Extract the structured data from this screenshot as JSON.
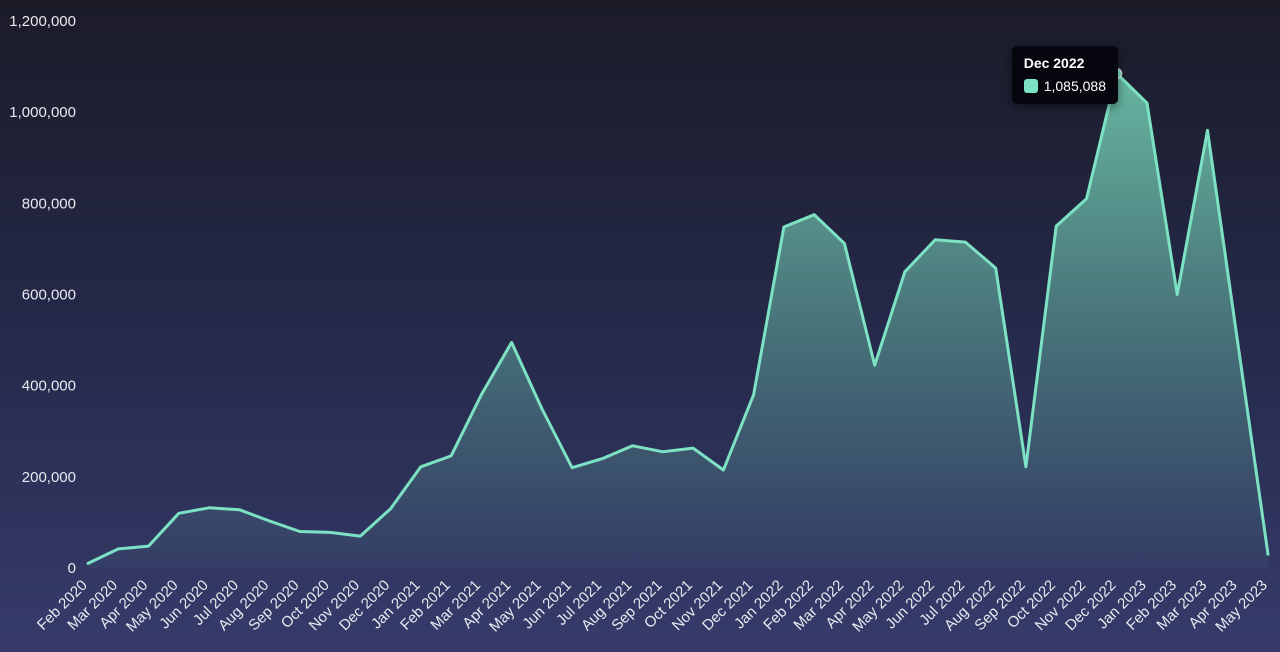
{
  "colors": {
    "line": "#7de2c3",
    "background_top": "#1b1b28",
    "background_mid": "#262b4d",
    "background_bottom": "#363b6b",
    "axis_text": "#e8eaf0",
    "tooltip_background": "#05060e"
  },
  "tooltip": {
    "title": "Dec 2022",
    "value": "1,085,088",
    "point_index": 34,
    "swatch_color": "#7de2c3"
  },
  "chart_data": {
    "type": "area",
    "title": "",
    "xlabel": "",
    "ylabel": "",
    "grid": false,
    "legend": "none",
    "ylim": [
      0,
      1200000
    ],
    "y_ticks": [
      "0",
      "200,000",
      "400,000",
      "600,000",
      "800,000",
      "1,000,000",
      "1,200,000"
    ],
    "y_tick_values": [
      0,
      200000,
      400000,
      600000,
      800000,
      1000000,
      1200000
    ],
    "categories": [
      "Feb 2020",
      "Mar 2020",
      "Apr 2020",
      "May 2020",
      "Jun 2020",
      "Jul 2020",
      "Aug 2020",
      "Sep 2020",
      "Oct 2020",
      "Nov 2020",
      "Dec 2020",
      "Jan 2021",
      "Feb 2021",
      "Mar 2021",
      "Apr 2021",
      "May 2021",
      "Jun 2021",
      "Jul 2021",
      "Aug 2021",
      "Sep 2021",
      "Oct 2021",
      "Nov 2021",
      "Dec 2021",
      "Jan 2022",
      "Feb 2022",
      "Mar 2022",
      "Apr 2022",
      "May 2022",
      "Jun 2022",
      "Jul 2022",
      "Aug 2022",
      "Sep 2022",
      "Oct 2022",
      "Nov 2022",
      "Dec 2022",
      "Jan 2023",
      "Feb 2023",
      "Mar 2023",
      "Apr 2023",
      "May 2023"
    ],
    "values": [
      10000,
      42000,
      48000,
      120000,
      132000,
      128000,
      103000,
      80000,
      78000,
      70000,
      130000,
      222000,
      246000,
      380000,
      495000,
      350000,
      220000,
      240000,
      268000,
      255000,
      263000,
      215000,
      380000,
      748000,
      775000,
      712000,
      445000,
      650000,
      720000,
      715000,
      658000,
      222000,
      750000,
      810000,
      1085088,
      1020000,
      600000,
      960000,
      495000,
      30000
    ]
  }
}
